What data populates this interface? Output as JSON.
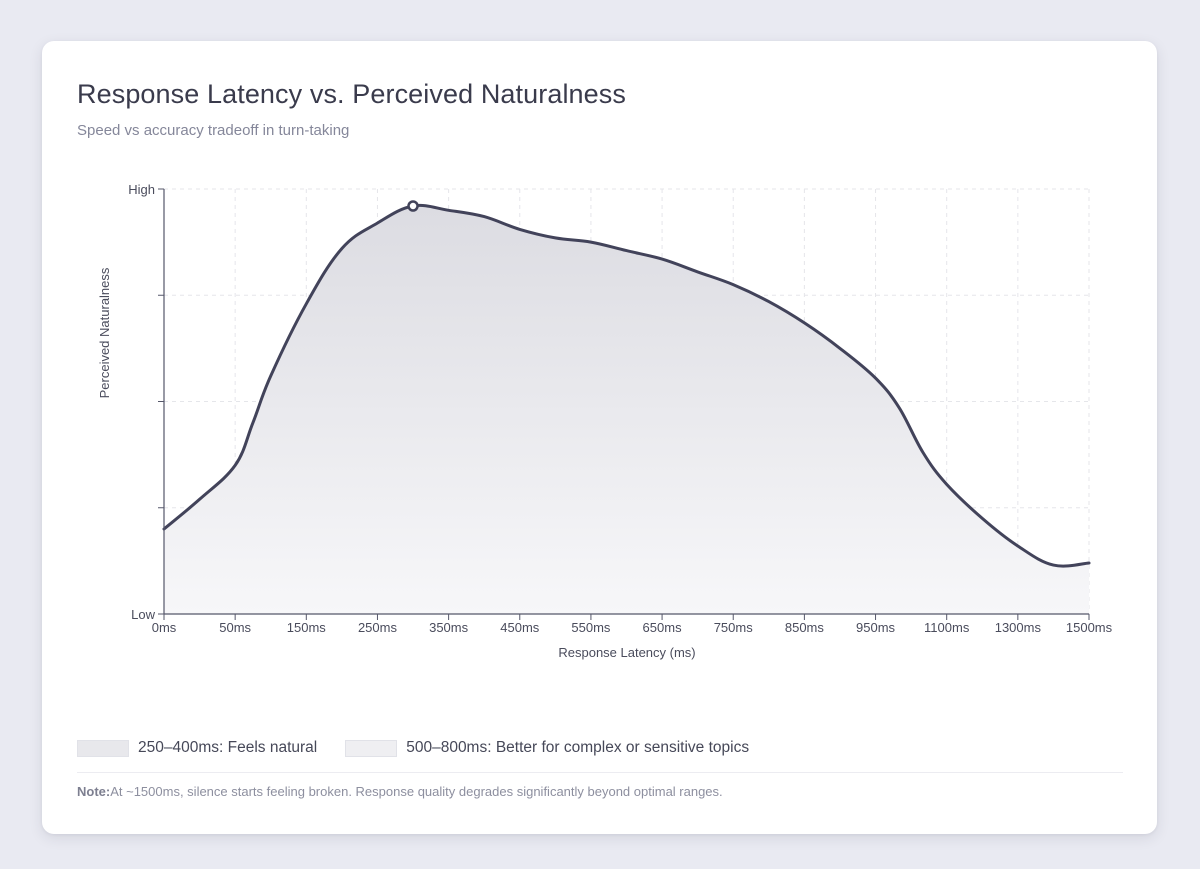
{
  "chart_data": {
    "type": "area",
    "title": "Response Latency vs. Perceived Naturalness",
    "subtitle": "Speed vs accuracy tradeoff in turn-taking",
    "xlabel": "Response Latency (ms)",
    "ylabel": "Perceived Naturalness",
    "x_tick_labels": [
      "0ms",
      "50ms",
      "150ms",
      "250ms",
      "350ms",
      "450ms",
      "550ms",
      "650ms",
      "750ms",
      "850ms",
      "950ms",
      "1100ms",
      "1300ms",
      "1500ms"
    ],
    "y_tick_labels": {
      "top": "High",
      "bottom": "Low"
    },
    "ylim": [
      0,
      100
    ],
    "y_grid_levels": [
      0,
      25,
      50,
      75,
      100
    ],
    "grid": true,
    "series": [
      {
        "points": [
          [
            "0ms",
            20
          ],
          [
            "25ms",
            27
          ],
          [
            "50ms",
            35
          ],
          [
            "75ms",
            45
          ],
          [
            "100ms",
            56
          ],
          [
            "150ms",
            73
          ],
          [
            "200ms",
            86
          ],
          [
            "250ms",
            92
          ],
          [
            "300ms",
            96
          ],
          [
            "350ms",
            95
          ],
          [
            "400ms",
            93.5
          ],
          [
            "450ms",
            90.5
          ],
          [
            "500ms",
            88.5
          ],
          [
            "550ms",
            87.5
          ],
          [
            "600ms",
            85.5
          ],
          [
            "650ms",
            83.5
          ],
          [
            "700ms",
            80.5
          ],
          [
            "750ms",
            77.5
          ],
          [
            "800ms",
            73.5
          ],
          [
            "850ms",
            68.5
          ],
          [
            "900ms",
            62.5
          ],
          [
            "950ms",
            55.5
          ],
          [
            "1000ms",
            48.5
          ],
          [
            "1050ms",
            38
          ],
          [
            "1100ms",
            30.5
          ],
          [
            "1200ms",
            22.5
          ],
          [
            "1300ms",
            16
          ],
          [
            "1400ms",
            11.5
          ],
          [
            "1500ms",
            12
          ]
        ],
        "peak_marker": "300ms"
      }
    ],
    "colors": {
      "line": "#42435a",
      "fill_top": "#dcdce2",
      "fill_bottom": "#f6f6f8",
      "grid": "#e5e6ea",
      "axis": "#55576a"
    }
  },
  "legend": [
    {
      "label": "250–400ms: Feels natural",
      "color": "#e8e8ec"
    },
    {
      "label": "500–800ms: Better for complex or sensitive topics",
      "color": "#efeff2"
    }
  ],
  "note": {
    "label": "Note:",
    "text": "At ~1500ms, silence starts feeling broken. Response quality degrades significantly beyond optimal ranges."
  }
}
